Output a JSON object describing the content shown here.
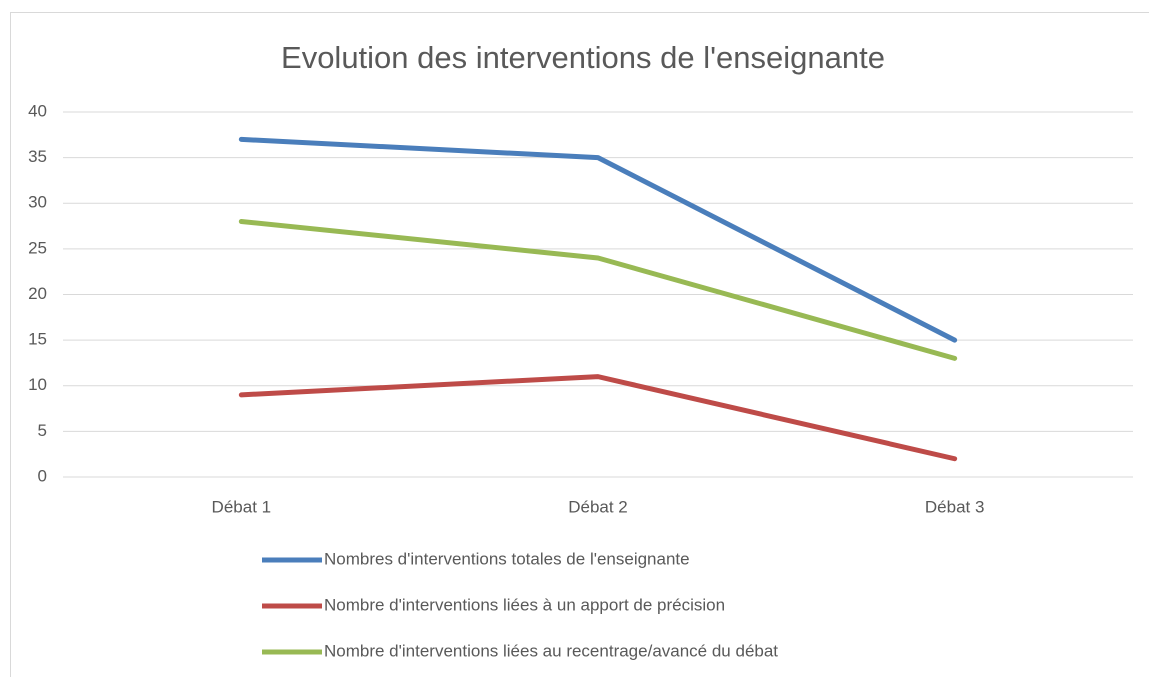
{
  "chart_data": {
    "type": "line",
    "title": "Evolution des interventions de l'enseignante",
    "categories": [
      "Débat 1",
      "Débat 2",
      "Débat 3"
    ],
    "series": [
      {
        "name": "Nombres d'interventions totales de l'enseignante",
        "color": "#4a7ebb",
        "values": [
          37,
          35,
          15
        ]
      },
      {
        "name": "Nombre d'interventions liées à un apport de précision",
        "color": "#be4b48",
        "values": [
          9,
          11,
          2
        ]
      },
      {
        "name": "Nombre d'interventions liées au recentrage/avancé du débat",
        "color": "#98b954",
        "values": [
          28,
          24,
          13
        ]
      }
    ],
    "ylim": [
      0,
      40
    ],
    "yticks": [
      0,
      5,
      10,
      15,
      20,
      25,
      30,
      35,
      40
    ],
    "grid": true,
    "legend": "bottom"
  }
}
